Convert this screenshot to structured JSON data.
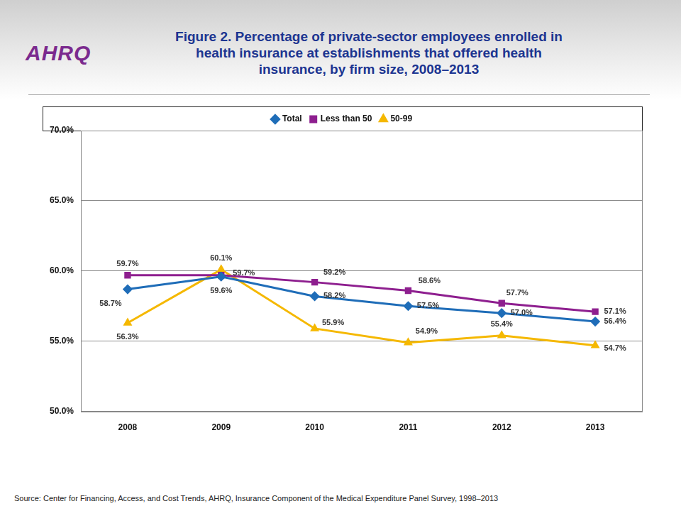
{
  "chart_data": {
    "type": "line",
    "title": "Figure 2. Percentage of private-sector employees enrolled in health insurance at establishments that offered health insurance, by firm size, 2008–2013",
    "logo": "AHRQ",
    "source": "Source: Center for Financing, Access, and Cost Trends, AHRQ, Insurance Component of the Medical Expenditure Panel Survey,  1998–2013",
    "categories": [
      "2008",
      "2009",
      "2010",
      "2011",
      "2012",
      "2013"
    ],
    "ylim": [
      50,
      70
    ],
    "yticks": [
      {
        "value": 50,
        "label": "50.0%"
      },
      {
        "value": 55,
        "label": "55.0%"
      },
      {
        "value": 60,
        "label": "60.0%"
      },
      {
        "value": 65,
        "label": "65.0%"
      },
      {
        "value": 70,
        "label": "70.0%"
      }
    ],
    "grid": true,
    "legend": "top",
    "data_labels": true,
    "series": [
      {
        "name": "Total",
        "color": "#1f6db8",
        "marker": "diamond",
        "line_style": "solid",
        "values": [
          58.7,
          59.6,
          58.2,
          57.5,
          57.0,
          56.4
        ],
        "value_labels": [
          "58.7%",
          "59.6%",
          "58.2%",
          "57.5%",
          "57.0%",
          "56.4%"
        ]
      },
      {
        "name": "Less than 50",
        "color": "#8e1f8f",
        "marker": "square",
        "line_style": "solid",
        "values": [
          59.7,
          59.7,
          59.2,
          58.6,
          57.7,
          57.1
        ],
        "value_labels": [
          "59.7%",
          "59.7%",
          "59.2%",
          "58.6%",
          "57.7%",
          "57.1%"
        ]
      },
      {
        "name": "50-99",
        "color": "#f5b800",
        "marker": "triangle",
        "line_style": "solid",
        "values": [
          56.3,
          60.1,
          55.9,
          54.9,
          55.4,
          54.7
        ],
        "value_labels": [
          "56.3%",
          "60.1%",
          "55.9%",
          "54.9%",
          "55.4%",
          "54.7%"
        ]
      }
    ]
  }
}
